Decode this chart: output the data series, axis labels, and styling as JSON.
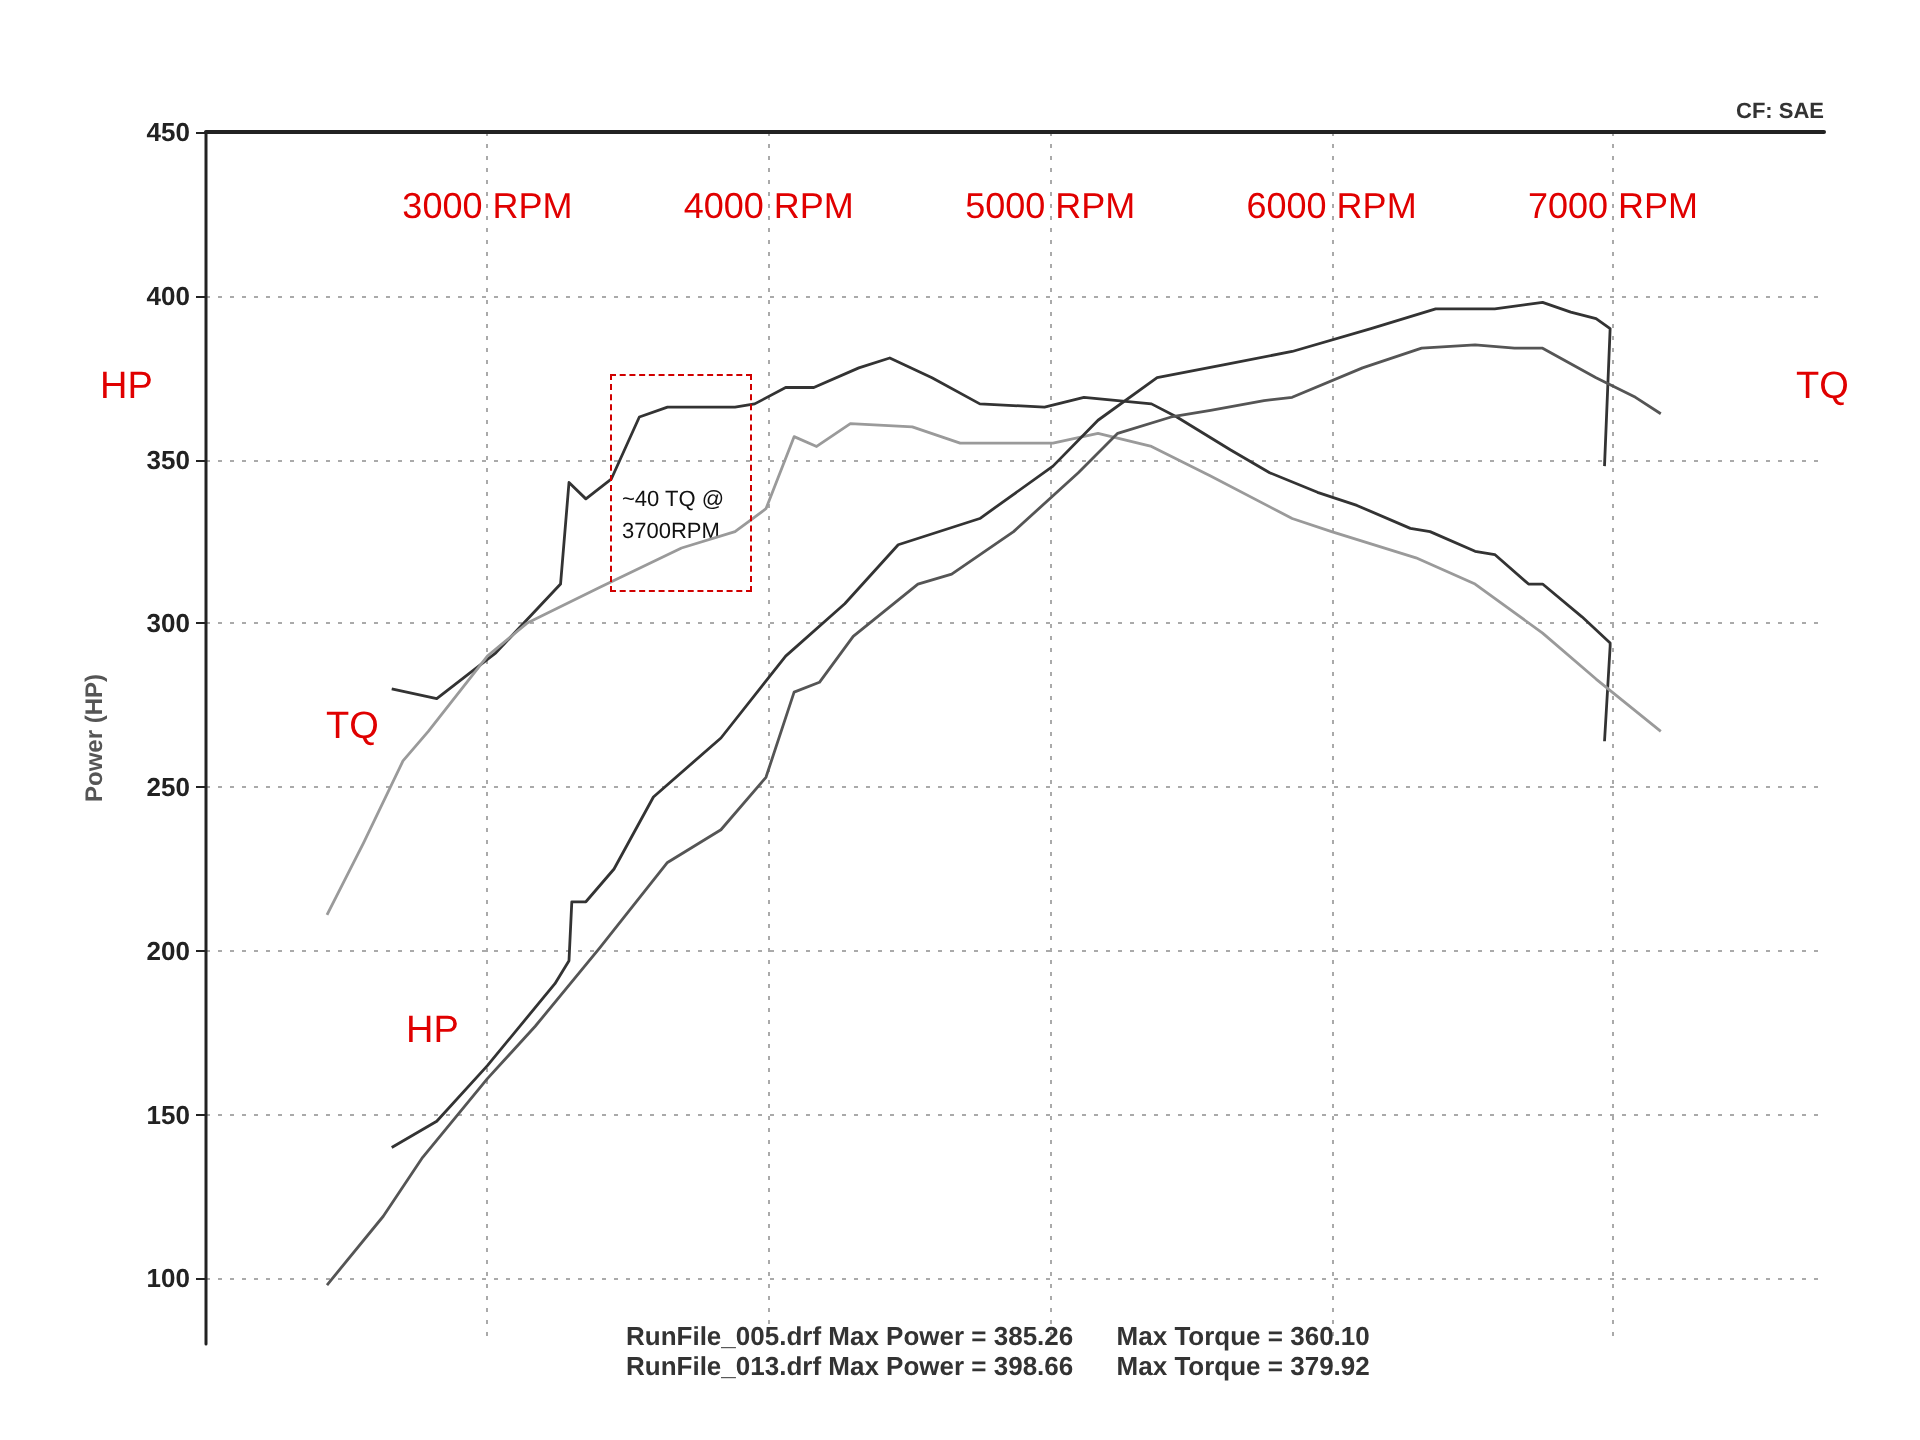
{
  "chart_data": {
    "type": "line",
    "ylabel": "Power (HP)",
    "xlim": [
      2000,
      7750
    ],
    "xticks": [
      {
        "value": 3000,
        "label": "3000 RPM"
      },
      {
        "value": 4000,
        "label": "4000 RPM"
      },
      {
        "value": 5000,
        "label": "5000 RPM"
      },
      {
        "value": 6000,
        "label": "6000 RPM"
      },
      {
        "value": 7000,
        "label": "7000 RPM"
      }
    ],
    "ylim": [
      80,
      450
    ],
    "yticks": [
      100,
      150,
      200,
      250,
      300,
      350,
      400,
      450
    ],
    "grid": true,
    "marker": "none",
    "line_style": "solid",
    "series": [
      {
        "color": "#333333",
        "x": [
          2660,
          2820,
          3030,
          3260,
          3290,
          3350,
          3440,
          3540,
          3640,
          3880,
          3950,
          4060,
          4160,
          4320,
          4430,
          4580,
          4750,
          4980,
          5120,
          5360,
          5450,
          5640,
          5780,
          5950,
          6090,
          6280,
          6350,
          6510,
          6580,
          6700,
          6750,
          6890,
          6990,
          6990,
          6970
        ],
        "values": [
          280,
          277,
          291,
          312,
          343,
          338,
          344,
          363,
          366,
          366,
          367,
          372,
          372,
          378,
          381,
          375,
          367,
          366,
          369,
          367,
          363,
          353,
          346,
          340,
          336,
          329,
          328,
          322,
          321,
          312,
          312,
          302,
          294,
          293,
          264
        ]
      },
      {
        "color": "#9a9a9a",
        "x": [
          2430,
          2560,
          2700,
          2790,
          3000,
          3140,
          3400,
          3690,
          3880,
          3990,
          4090,
          4170,
          4290,
          4510,
          4680,
          5010,
          5170,
          5360,
          5570,
          5860,
          6000,
          6300,
          6510,
          6750,
          6940,
          7170
        ],
        "values": [
          211,
          233,
          258,
          267,
          290,
          300,
          311,
          323,
          328,
          335,
          357,
          354,
          361,
          360,
          355,
          355,
          358,
          354,
          345,
          332,
          328,
          320,
          312,
          297,
          283,
          267
        ]
      },
      {
        "color": "#333333",
        "x": [
          2660,
          2820,
          3000,
          3240,
          3290,
          3300,
          3350,
          3450,
          3590,
          3830,
          4060,
          4270,
          4460,
          4750,
          5010,
          5170,
          5380,
          5620,
          5860,
          6140,
          6370,
          6580,
          6750,
          6850,
          6940,
          6990,
          6970
        ],
        "values": [
          140,
          148,
          165,
          190,
          197,
          215,
          215,
          225,
          247,
          265,
          290,
          306,
          324,
          332,
          348,
          362,
          375,
          379,
          383,
          390,
          396,
          396,
          398,
          395,
          393,
          390,
          348
        ]
      },
      {
        "color": "#555555",
        "x": [
          2430,
          2630,
          2770,
          3000,
          3170,
          3400,
          3640,
          3830,
          3990,
          4090,
          4180,
          4300,
          4530,
          4650,
          4870,
          5100,
          5240,
          5430,
          5570,
          5760,
          5860,
          6110,
          6320,
          6510,
          6650,
          6750,
          6940,
          7080,
          7170
        ],
        "values": [
          98,
          119,
          137,
          161,
          177,
          201,
          227,
          237,
          253,
          279,
          282,
          296,
          312,
          315,
          328,
          346,
          358,
          363,
          365,
          368,
          369,
          378,
          384,
          385,
          384,
          384,
          375,
          369,
          364
        ]
      }
    ],
    "annotations": [
      "HP",
      "TQ",
      "TQ",
      "HP",
      "~40 TQ @\n3700RPM",
      "RunFile_005.drf Max Power = 385.26      Max Torque = 360.10",
      "RunFile_013.drf Max Power = 398.66      Max Torque = 379.92",
      "CF: SAE"
    ]
  }
}
